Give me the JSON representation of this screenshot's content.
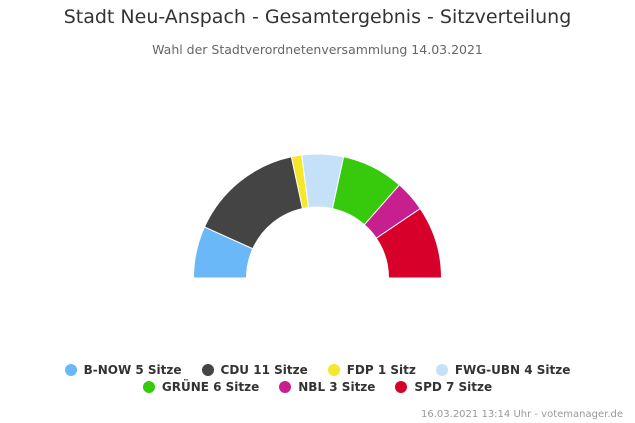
{
  "header": {
    "title": "Stadt Neu-Anspach - Gesamtergebnis - Sitzverteilung",
    "subtitle": "Wahl der Stadtverordnetenversammlung 14.03.2021"
  },
  "chart_data": {
    "type": "pie",
    "variant": "semi-donut (parliament)",
    "title": "Stadt Neu-Anspach - Gesamtergebnis - Sitzverteilung",
    "subtitle": "Wahl der Stadtverordnetenversammlung 14.03.2021",
    "slices_order": [
      "B-NOW",
      "CDU",
      "FDP",
      "FWG-UBN",
      "GRÜNE",
      "NBL",
      "SPD"
    ],
    "slices": [
      {
        "party": "B-NOW",
        "seats": 5,
        "color": "#6ab8f7"
      },
      {
        "party": "CDU",
        "seats": 11,
        "color": "#444444"
      },
      {
        "party": "FDP",
        "seats": 1,
        "color": "#f5e72a"
      },
      {
        "party": "FWG-UBN",
        "seats": 4,
        "color": "#c5e1f9"
      },
      {
        "party": "GRÜNE",
        "seats": 6,
        "color": "#36c90c"
      },
      {
        "party": "NBL",
        "seats": 3,
        "color": "#c71f8f"
      },
      {
        "party": "SPD",
        "seats": 7,
        "color": "#d6002a"
      }
    ],
    "legend_placement": "bottom"
  },
  "legend": {
    "rows": [
      [
        {
          "label": "B-NOW 5 Sitze",
          "color": "#6ab8f7"
        },
        {
          "label": "CDU 11 Sitze",
          "color": "#444444"
        },
        {
          "label": "FDP 1 Sitz",
          "color": "#f5e72a"
        },
        {
          "label": "FWG-UBN 4 Sitze",
          "color": "#c5e1f9"
        }
      ],
      [
        {
          "label": "GRÜNE 6 Sitze",
          "color": "#36c90c"
        },
        {
          "label": "NBL 3 Sitze",
          "color": "#c71f8f"
        },
        {
          "label": "SPD 7 Sitze",
          "color": "#d6002a"
        }
      ]
    ]
  },
  "footer": {
    "text": "16.03.2021 13:14 Uhr - votemanager.de"
  }
}
